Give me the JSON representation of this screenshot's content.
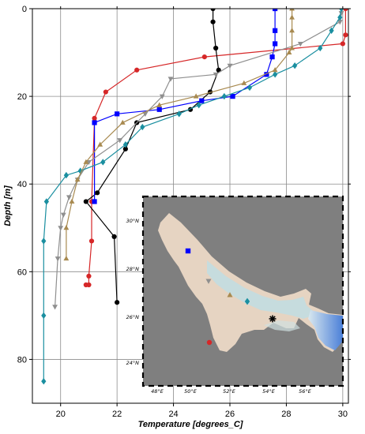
{
  "chart_data": {
    "type": "line",
    "xlabel": "Temperature [degrees_C]",
    "ylabel": "Depth [m]",
    "xlim": [
      19,
      30.2
    ],
    "ylim": [
      90,
      0
    ],
    "y_inverted": true,
    "grid": true,
    "x_ticks": [
      "20",
      "22",
      "24",
      "26",
      "28",
      "30"
    ],
    "y_ticks": [
      "0",
      "20",
      "40",
      "60",
      "80"
    ],
    "series": [
      {
        "color": "#d62728",
        "marker": "circle",
        "x": [
          30.1,
          30.1,
          30.0,
          25.1,
          22.7,
          21.6,
          21.2,
          21.1,
          21.1,
          21.0,
          21.0,
          20.9
        ],
        "y": [
          0,
          6,
          8,
          11,
          14,
          19,
          25,
          44,
          53,
          61,
          63,
          63
        ]
      },
      {
        "color": "#000000",
        "marker": "circle",
        "x": [
          25.4,
          25.4,
          25.5,
          25.6,
          25.3,
          24.6,
          22.7,
          22.3,
          21.3,
          20.9,
          21.9,
          22.0
        ],
        "y": [
          0,
          3,
          9,
          14,
          19,
          23,
          26,
          32,
          42,
          44,
          52,
          67
        ]
      },
      {
        "color": "#0000ff",
        "marker": "square",
        "x": [
          27.6,
          27.6,
          27.6,
          27.5,
          27.3,
          26.1,
          25.0,
          23.5,
          22.0,
          21.2,
          21.2
        ],
        "y": [
          0,
          5,
          8,
          11,
          15,
          20,
          21,
          23,
          24,
          26,
          44
        ]
      },
      {
        "color": "#8f8f8f",
        "marker": "triangle-down",
        "x": [
          29.95,
          29.95,
          29.9,
          28.5,
          26.0,
          25.5,
          23.9,
          23.6,
          23.0,
          22.1,
          21.0,
          20.6,
          20.3,
          20.1,
          20.0,
          19.9,
          19.8
        ],
        "y": [
          0,
          1,
          3,
          8,
          13,
          15,
          16,
          20,
          24,
          30,
          35,
          39,
          43,
          47,
          50,
          57,
          68
        ]
      },
      {
        "color": "#1a8fa0",
        "marker": "diamond",
        "x": [
          29.95,
          29.9,
          29.6,
          29.2,
          28.3,
          27.6,
          26.7,
          25.8,
          24.9,
          24.2,
          22.9,
          22.3,
          21.5,
          20.7,
          20.2,
          19.5,
          19.4,
          19.4,
          19.4
        ],
        "y": [
          0,
          2,
          5,
          9,
          13,
          15,
          18,
          20,
          22,
          24,
          27,
          31,
          35,
          37,
          38,
          44,
          53,
          70,
          85
        ]
      },
      {
        "color": "#a88a50",
        "marker": "triangle-up",
        "x": [
          28.2,
          28.2,
          28.2,
          28.2,
          28.1,
          27.6,
          26.5,
          24.8,
          23.5,
          22.2,
          21.4,
          20.9,
          20.6,
          20.4,
          20.2,
          20.2
        ],
        "y": [
          0,
          2,
          5,
          9,
          10,
          14,
          17,
          20,
          22,
          26,
          31,
          35,
          39,
          44,
          50,
          57
        ]
      }
    ]
  },
  "inset_map": {
    "lon_labels": [
      "48°E",
      "50°E",
      "52°E",
      "54°E",
      "56°E"
    ],
    "lat_labels": [
      "30°N",
      "28°N",
      "26°N",
      "24°N"
    ],
    "land_color": "#7f7f7f",
    "water_color": "#e6d4c2",
    "stations": [
      {
        "color": "#0000ff",
        "marker": "square"
      },
      {
        "color": "#8f8f8f",
        "marker": "triangle-down"
      },
      {
        "color": "#a88a50",
        "marker": "triangle-up"
      },
      {
        "color": "#1a8fa0",
        "marker": "diamond"
      },
      {
        "color": "#000000",
        "marker": "star"
      },
      {
        "color": "#d62728",
        "marker": "circle"
      }
    ]
  }
}
